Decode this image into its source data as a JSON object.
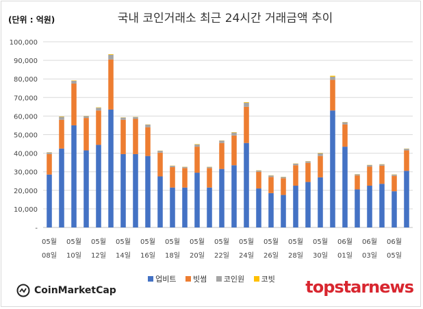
{
  "header": {
    "unit_label": "(단위 : 억원)",
    "title": "국내 코인거래소 최근 24시간 거래금액 추이"
  },
  "logos": {
    "coinmarketcap": "CoinMarketCap",
    "topstarnews": "topstarnews"
  },
  "chart_data": {
    "type": "bar",
    "stacked": true,
    "title": "국내 코인거래소 최근 24시간 거래금액 추이",
    "ylabel": "(단위 : 억원)",
    "ylim": [
      0,
      100000
    ],
    "yticks": [
      "-",
      "10,000",
      "20,000",
      "30,000",
      "40,000",
      "50,000",
      "60,000",
      "70,000",
      "80,000",
      "90,000",
      "100,000"
    ],
    "categories": [
      "05월 08일",
      "",
      "05월 10일",
      "",
      "05월 12일",
      "",
      "05월 14일",
      "",
      "05월 16일",
      "",
      "05월 18일",
      "",
      "05월 20일",
      "",
      "05월 22일",
      "",
      "05월 24일",
      "",
      "05월 26일",
      "",
      "05월 28일",
      "",
      "05월 30일",
      "",
      "06월 01일",
      "",
      "06월 03일",
      "",
      "06월 05일",
      ""
    ],
    "x_tick_labels": [
      {
        "month": "05월",
        "day": "08일"
      },
      {
        "month": "05월",
        "day": "10일"
      },
      {
        "month": "05월",
        "day": "12일"
      },
      {
        "month": "05월",
        "day": "14일"
      },
      {
        "month": "05월",
        "day": "16일"
      },
      {
        "month": "05월",
        "day": "18일"
      },
      {
        "month": "05월",
        "day": "20일"
      },
      {
        "month": "05월",
        "day": "22일"
      },
      {
        "month": "05월",
        "day": "24일"
      },
      {
        "month": "05월",
        "day": "26일"
      },
      {
        "month": "05월",
        "day": "28일"
      },
      {
        "month": "05월",
        "day": "30일"
      },
      {
        "month": "06월",
        "day": "01일"
      },
      {
        "month": "06월",
        "day": "03일"
      },
      {
        "month": "06월",
        "day": "05일"
      }
    ],
    "series": [
      {
        "name": "업비트",
        "color": "#4472c4",
        "values": [
          28500,
          42500,
          55000,
          41500,
          44500,
          63500,
          39500,
          39500,
          38500,
          27500,
          21500,
          21500,
          29500,
          21500,
          31500,
          33500,
          45500,
          21000,
          18500,
          17500,
          22500,
          24500,
          27000,
          63000,
          43500,
          20500,
          22500,
          23500,
          19500,
          30500
        ]
      },
      {
        "name": "빗썸",
        "color": "#ed7d31",
        "values": [
          11000,
          15500,
          22500,
          17500,
          18500,
          27000,
          18500,
          19000,
          15500,
          12800,
          11000,
          10500,
          14000,
          10500,
          14000,
          16000,
          19500,
          9000,
          8700,
          9000,
          11000,
          10300,
          11500,
          16500,
          12000,
          7500,
          10300,
          9800,
          8300,
          11000
        ]
      },
      {
        "name": "코인원",
        "color": "#a5a5a5",
        "values": [
          900,
          1600,
          1500,
          1000,
          1500,
          2500,
          1200,
          1000,
          1400,
          1000,
          700,
          600,
          1200,
          600,
          1300,
          1600,
          2200,
          700,
          800,
          700,
          900,
          800,
          1500,
          1700,
          1200,
          600,
          800,
          700,
          700,
          900
        ]
      },
      {
        "name": "코빗",
        "color": "#ffc000",
        "values": [
          100,
          200,
          200,
          100,
          200,
          300,
          100,
          100,
          100,
          100,
          100,
          100,
          200,
          100,
          100,
          200,
          300,
          100,
          100,
          100,
          100,
          100,
          200,
          500,
          100,
          100,
          100,
          100,
          100,
          100
        ]
      }
    ],
    "legend_position": "bottom",
    "grid": true
  }
}
